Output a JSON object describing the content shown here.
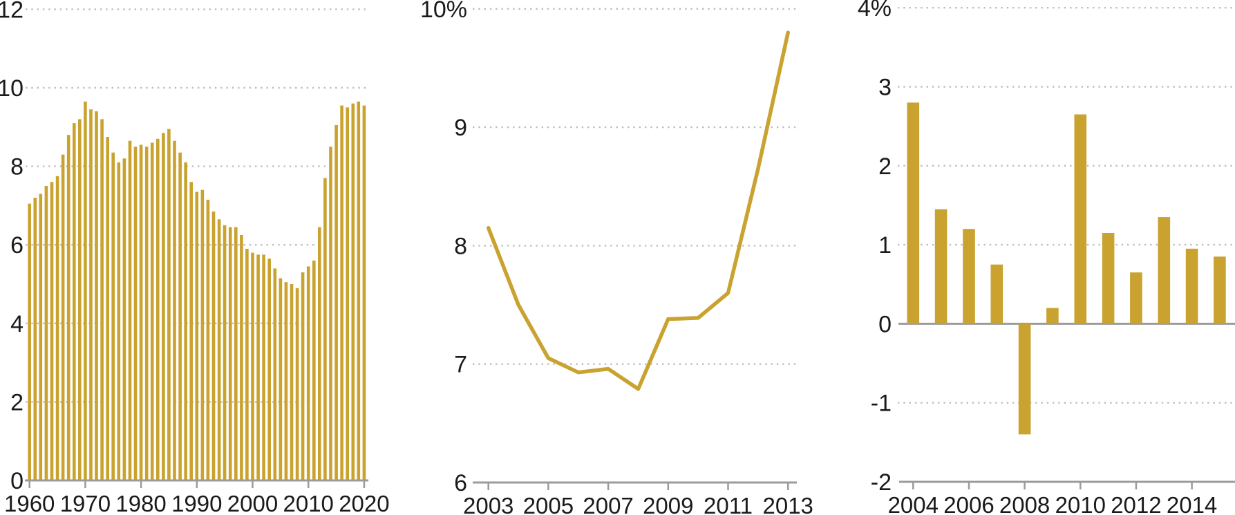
{
  "page": {
    "background": "#FFFFFF"
  },
  "colors": {
    "gold": "#C9A22F",
    "axis": "#9B9B9B",
    "grid": "#BDBDBD",
    "text": "#1A1A1A"
  },
  "chart_data": [
    {
      "id": "chart-1-annual-bars-1960-2020",
      "type": "bar",
      "title": "",
      "ylabel": "",
      "xlabel": "",
      "ylim": [
        0,
        12
      ],
      "x": [
        1960,
        1961,
        1962,
        1963,
        1964,
        1965,
        1966,
        1967,
        1968,
        1969,
        1970,
        1971,
        1972,
        1973,
        1974,
        1975,
        1976,
        1977,
        1978,
        1979,
        1980,
        1981,
        1982,
        1983,
        1984,
        1985,
        1986,
        1987,
        1988,
        1989,
        1990,
        1991,
        1992,
        1993,
        1994,
        1995,
        1996,
        1997,
        1998,
        1999,
        2000,
        2001,
        2002,
        2003,
        2004,
        2005,
        2006,
        2007,
        2008,
        2009,
        2010,
        2011,
        2012,
        2013,
        2014,
        2015,
        2016,
        2017,
        2018,
        2019,
        2020
      ],
      "values": [
        7.05,
        7.2,
        7.3,
        7.5,
        7.6,
        7.75,
        8.3,
        8.8,
        9.1,
        9.2,
        9.65,
        9.45,
        9.4,
        9.2,
        8.75,
        8.35,
        8.1,
        8.2,
        8.65,
        8.5,
        8.55,
        8.5,
        8.6,
        8.7,
        8.85,
        8.95,
        8.65,
        8.35,
        8.1,
        7.6,
        7.35,
        7.4,
        7.15,
        6.85,
        6.65,
        6.5,
        6.45,
        6.45,
        6.25,
        5.9,
        5.8,
        5.75,
        5.75,
        5.65,
        5.4,
        5.15,
        5.05,
        5.0,
        4.9,
        5.3,
        5.45,
        5.6,
        6.45,
        7.7,
        8.5,
        9.05,
        9.55,
        9.5,
        9.6,
        9.65,
        9.55
      ],
      "ytick_values": [
        0,
        2,
        4,
        6,
        8,
        10,
        12
      ],
      "ytick_labels": [
        "0",
        "2",
        "4",
        "6",
        "8",
        "10",
        "12"
      ],
      "grid_values": [
        2,
        4,
        6,
        8,
        10,
        12
      ],
      "grid_style": "dotted-horizontal",
      "zero_line": false,
      "xtick_values": [
        1960,
        1970,
        1980,
        1990,
        2000,
        2010,
        2020
      ],
      "xtick_labels": [
        "1960",
        "1970",
        "1980",
        "1990",
        "2000",
        "2010",
        "2020"
      ],
      "legend": "none"
    },
    {
      "id": "chart-2-rate-line-2003-2013",
      "type": "line",
      "title": "",
      "ylabel": "",
      "xlabel": "",
      "ylim": [
        6,
        10
      ],
      "x": [
        2003,
        2004,
        2005,
        2006,
        2007,
        2008,
        2009,
        2010,
        2011,
        2012,
        2013
      ],
      "values": [
        8.15,
        7.5,
        7.05,
        6.93,
        6.96,
        6.79,
        7.38,
        7.39,
        7.6,
        8.65,
        9.8
      ],
      "ytick_values": [
        6,
        7,
        8,
        9,
        10
      ],
      "ytick_labels": [
        "6",
        "7",
        "8",
        "9",
        "10%"
      ],
      "grid_values": [
        7,
        8,
        9,
        10
      ],
      "grid_style": "dotted-horizontal",
      "zero_line": false,
      "xtick_values": [
        2003,
        2005,
        2007,
        2009,
        2011,
        2013
      ],
      "xtick_labels": [
        "2003",
        "2005",
        "2007",
        "2009",
        "2011",
        "2013"
      ],
      "legend": "none"
    },
    {
      "id": "chart-3-growth-bars-2004-2015",
      "type": "bar",
      "title": "",
      "ylabel": "",
      "xlabel": "",
      "ylim": [
        -2,
        4
      ],
      "x": [
        2004,
        2005,
        2006,
        2007,
        2008,
        2009,
        2010,
        2011,
        2012,
        2013,
        2014,
        2015
      ],
      "values": [
        2.8,
        1.45,
        1.2,
        0.75,
        -1.4,
        0.2,
        2.65,
        1.15,
        0.65,
        1.35,
        0.95,
        0.85
      ],
      "ytick_values": [
        -2,
        -1,
        0,
        1,
        2,
        3,
        4
      ],
      "ytick_labels": [
        "-2",
        "-1",
        "0",
        "1",
        "2",
        "3",
        "4%"
      ],
      "grid_values": [
        -1,
        1,
        2,
        3,
        4
      ],
      "grid_style": "dotted-horizontal",
      "zero_line": true,
      "xtick_values": [
        2004,
        2006,
        2008,
        2010,
        2012,
        2014
      ],
      "xtick_labels": [
        "2004",
        "2006",
        "2008",
        "2010",
        "2012",
        "2014"
      ],
      "legend": "none"
    }
  ]
}
